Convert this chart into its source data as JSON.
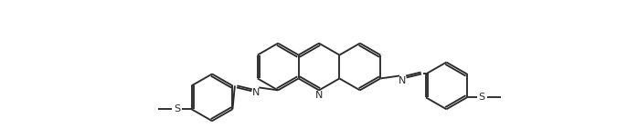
{
  "bg_color": "#ffffff",
  "line_color": "#2a2a2a",
  "line_width": 1.35,
  "figsize": [
    6.98,
    1.52
  ],
  "dpi": 100,
  "xlim": [
    0,
    14
  ],
  "ylim": [
    0.0,
    3.0
  ]
}
